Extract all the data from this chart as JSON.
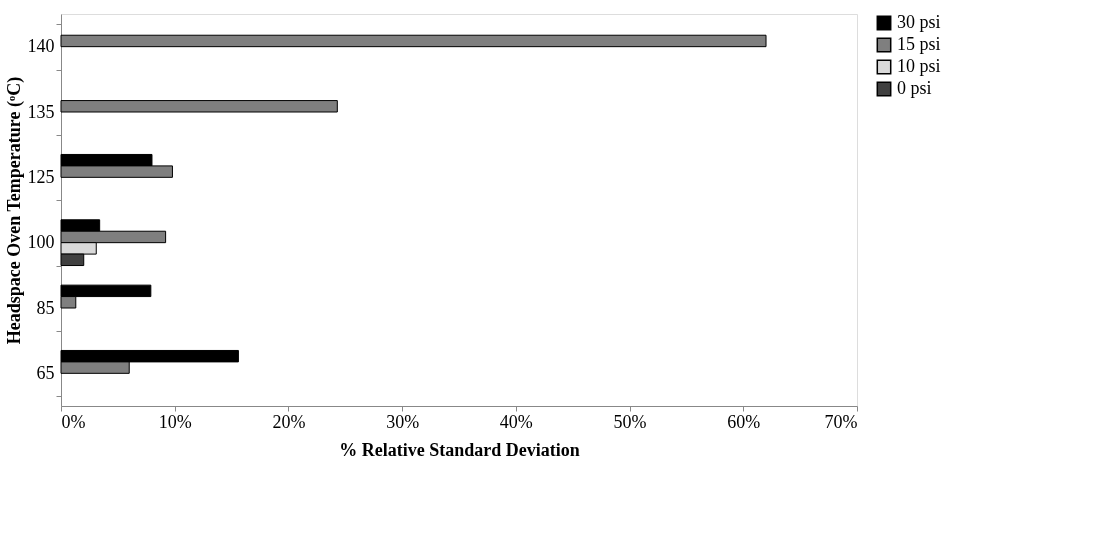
{
  "chart_data": {
    "type": "bar",
    "orientation": "horizontal",
    "xlabel": "% Relative Standard Deviation",
    "ylabel": "Headspace Oven Temperature (ᵒC)",
    "categories": [
      "140",
      "135",
      "125",
      "100",
      "85",
      "65"
    ],
    "series": [
      {
        "name": "30 psi",
        "color": "#000000",
        "values": [
          null,
          null,
          8.0,
          3.4,
          7.9,
          15.6
        ]
      },
      {
        "name": "15 psi",
        "color": "#7f7f7f",
        "values": [
          62.0,
          24.3,
          9.8,
          9.2,
          1.3,
          6.0
        ]
      },
      {
        "name": "10 psi",
        "color": "#d9d9d9",
        "values": [
          null,
          null,
          null,
          3.1,
          null,
          null
        ]
      },
      {
        "name": "0 psi",
        "color": "#404040",
        "values": [
          null,
          null,
          null,
          2.0,
          null,
          null
        ]
      }
    ],
    "xlim": [
      0,
      70
    ],
    "xticks": [
      {
        "value": 0,
        "label": "0%"
      },
      {
        "value": 10,
        "label": "10%"
      },
      {
        "value": 20,
        "label": "20%"
      },
      {
        "value": 30,
        "label": "30%"
      },
      {
        "value": 40,
        "label": "40%"
      },
      {
        "value": 50,
        "label": "50%"
      },
      {
        "value": 60,
        "label": "60%"
      },
      {
        "value": 70,
        "label": "70%"
      }
    ],
    "grid": false,
    "legend": "right"
  }
}
